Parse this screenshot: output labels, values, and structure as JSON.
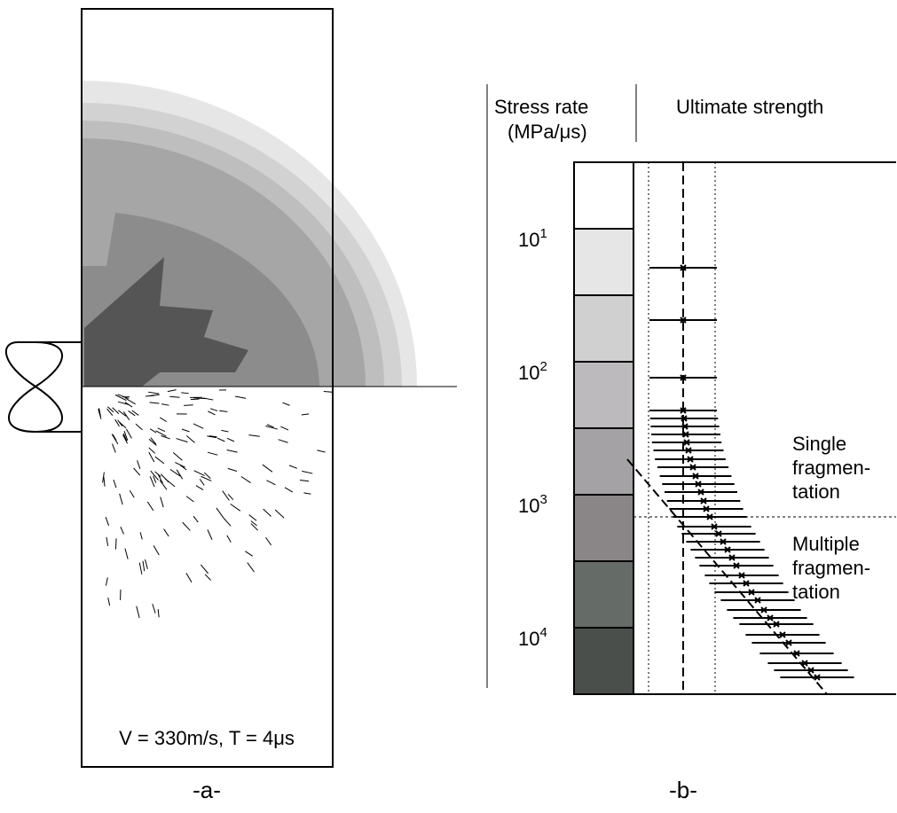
{
  "panel_a": {
    "condition": "V = 330m/s,   T = 4μs",
    "caption": "-a-"
  },
  "panel_b": {
    "header_left": [
      "Stress rate",
      "(MPa/μs)"
    ],
    "header_right": "Ultimate strength",
    "ticks": [
      {
        "base": "10",
        "exp": "1"
      },
      {
        "base": "10",
        "exp": "2"
      },
      {
        "base": "10",
        "exp": "3"
      },
      {
        "base": "10",
        "exp": "4"
      }
    ],
    "single": [
      "Single",
      "fragmen-",
      "tation"
    ],
    "multiple": [
      "Multiple",
      "fragmen-",
      "tation"
    ],
    "caption": "-b-"
  }
}
